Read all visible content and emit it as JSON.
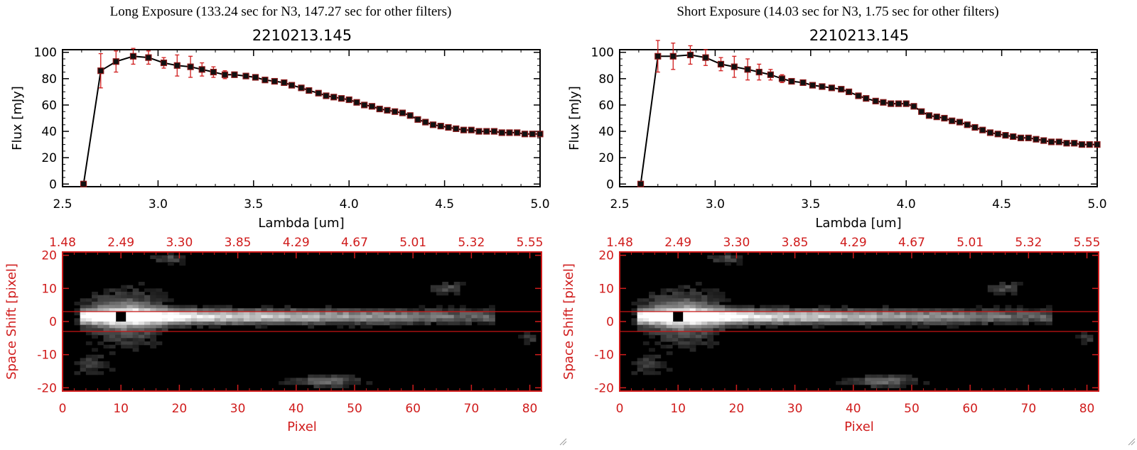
{
  "colors": {
    "background": "#ffffff",
    "axis": "#000000",
    "errorbar": "#d01c1c",
    "marker": "#111111",
    "marker_edge": "#8b1a1a",
    "image_axis": "#d01c1c",
    "aperture_line": "#c81414"
  },
  "chart_data": [
    {
      "type": "line",
      "panel": "long-exposure-spectrum",
      "heading": "Long Exposure (133.24 sec for N3, 147.27 sec for other filters)",
      "title": "2210213.145",
      "xlabel": "Lambda [um]",
      "ylabel": "Flux [mJy]",
      "xlim": [
        2.5,
        5.0
      ],
      "ylim": [
        -2,
        102
      ],
      "xticks": [
        2.5,
        3.0,
        3.5,
        4.0,
        4.5,
        5.0
      ],
      "xtick_labels": [
        "2.5",
        "3.0",
        "3.5",
        "4.0",
        "4.5",
        "5.0"
      ],
      "yticks": [
        0,
        20,
        40,
        60,
        80,
        100
      ],
      "ytick_labels": [
        "0",
        "20",
        "40",
        "60",
        "80",
        "100"
      ],
      "grid": false,
      "x": [
        2.61,
        2.7,
        2.78,
        2.87,
        2.95,
        3.03,
        3.1,
        3.17,
        3.23,
        3.29,
        3.35,
        3.4,
        3.46,
        3.51,
        3.56,
        3.61,
        3.66,
        3.7,
        3.75,
        3.79,
        3.84,
        3.88,
        3.92,
        3.96,
        4.0,
        4.04,
        4.08,
        4.12,
        4.16,
        4.2,
        4.24,
        4.28,
        4.32,
        4.36,
        4.4,
        4.44,
        4.48,
        4.52,
        4.56,
        4.6,
        4.64,
        4.68,
        4.72,
        4.76,
        4.8,
        4.84,
        4.88,
        4.92,
        4.96,
        5.0
      ],
      "y": [
        0,
        86,
        93,
        97,
        96,
        92,
        90,
        89,
        87,
        85,
        83,
        83,
        82,
        81,
        79,
        78,
        77,
        75,
        73,
        71,
        69,
        67,
        66,
        65,
        64,
        62,
        60,
        59,
        57,
        56,
        55,
        54,
        52,
        49,
        47,
        45,
        44,
        43,
        42,
        41,
        41,
        40,
        40,
        40,
        39,
        39,
        39,
        38,
        38,
        38
      ],
      "yerr": [
        0,
        13,
        8,
        6,
        5,
        4,
        8,
        8,
        5,
        4,
        3,
        2,
        2,
        2,
        2,
        1.5,
        1.5,
        1.5,
        1.5,
        1.5,
        1.5,
        1.5,
        1.5,
        1.5,
        1.5,
        1.5,
        1.5,
        1.5,
        1.5,
        1.5,
        1.5,
        1.5,
        1.5,
        1.5,
        1.5,
        1.5,
        1.5,
        1.5,
        1.5,
        1.5,
        1.5,
        1.5,
        1.5,
        1.5,
        1.5,
        1.5,
        1.5,
        1.5,
        1.5,
        1.5
      ]
    },
    {
      "type": "line",
      "panel": "short-exposure-spectrum",
      "heading": "Short Exposure (14.03 sec for N3, 1.75 sec for other filters)",
      "title": "2210213.145",
      "xlabel": "Lambda [um]",
      "ylabel": "Flux [mJy]",
      "xlim": [
        2.5,
        5.0
      ],
      "ylim": [
        -2,
        102
      ],
      "xticks": [
        2.5,
        3.0,
        3.5,
        4.0,
        4.5,
        5.0
      ],
      "xtick_labels": [
        "2.5",
        "3.0",
        "3.5",
        "4.0",
        "4.5",
        "5.0"
      ],
      "yticks": [
        0,
        20,
        40,
        60,
        80,
        100
      ],
      "ytick_labels": [
        "0",
        "20",
        "40",
        "60",
        "80",
        "100"
      ],
      "grid": false,
      "x": [
        2.61,
        2.7,
        2.78,
        2.87,
        2.95,
        3.03,
        3.1,
        3.17,
        3.23,
        3.29,
        3.35,
        3.4,
        3.46,
        3.51,
        3.56,
        3.61,
        3.66,
        3.7,
        3.75,
        3.79,
        3.84,
        3.88,
        3.92,
        3.96,
        4.0,
        4.04,
        4.08,
        4.12,
        4.16,
        4.2,
        4.24,
        4.28,
        4.32,
        4.36,
        4.4,
        4.44,
        4.48,
        4.52,
        4.56,
        4.6,
        4.64,
        4.68,
        4.72,
        4.76,
        4.8,
        4.84,
        4.88,
        4.92,
        4.96,
        5.0
      ],
      "y": [
        0,
        97,
        97,
        98,
        96,
        91,
        89,
        87,
        85,
        83,
        80,
        78,
        77,
        75,
        74,
        73,
        72,
        70,
        67,
        65,
        63,
        62,
        61,
        61,
        61,
        59,
        55,
        52,
        51,
        50,
        48,
        47,
        45,
        43,
        41,
        39,
        38,
        37,
        36,
        35,
        35,
        34,
        33,
        32,
        32,
        31,
        31,
        30,
        30,
        30
      ],
      "yerr": [
        0,
        12,
        10,
        7,
        6,
        5,
        8,
        8,
        6,
        4,
        3,
        2,
        2,
        1.5,
        1.5,
        1.5,
        1.5,
        1.5,
        1.5,
        1.5,
        1.5,
        1.5,
        1.5,
        1.5,
        1.5,
        1.5,
        1.5,
        1.5,
        1.5,
        1.5,
        1.5,
        1.5,
        1.5,
        1.5,
        1.5,
        1.5,
        1.5,
        1.5,
        1.5,
        1.5,
        1.5,
        1.5,
        1.5,
        1.5,
        1.5,
        1.5,
        1.5,
        1.5,
        1.5,
        1.5
      ]
    },
    {
      "type": "heatmap",
      "panel": "long-exposure-image",
      "xlabel": "Pixel",
      "ylabel": "Space Shift [pixel]",
      "xlim": [
        0,
        82
      ],
      "ylim": [
        -21,
        21
      ],
      "xticks": [
        0,
        10,
        20,
        30,
        40,
        50,
        60,
        70,
        80
      ],
      "xtick_labels": [
        "0",
        "10",
        "20",
        "30",
        "40",
        "50",
        "60",
        "70",
        "80"
      ],
      "yticks": [
        -20,
        -10,
        0,
        10,
        20
      ],
      "ytick_labels": [
        "-20",
        "-10",
        "0",
        "10",
        "20"
      ],
      "top_tick_labels": [
        "1.48",
        "2.49",
        "3.30",
        "3.85",
        "4.29",
        "4.67",
        "5.01",
        "5.32",
        "5.55"
      ],
      "colormap": "grayscale",
      "aperture_y": [
        -3,
        3
      ],
      "peak": [
        10,
        1.5
      ],
      "trace": {
        "x_start": 3,
        "x_end": 74,
        "center_y": 1.5,
        "halfwidth": 2.2
      },
      "blobs": [
        {
          "x": 11,
          "y": 1.5,
          "sx": 7,
          "sy": 8,
          "amp": 0.55
        },
        {
          "x": 18,
          "y": 19,
          "sx": 3,
          "sy": 1.5,
          "amp": 0.35
        },
        {
          "x": 45,
          "y": -18,
          "sx": 6,
          "sy": 1.8,
          "amp": 0.45
        },
        {
          "x": 66,
          "y": 10,
          "sx": 3,
          "sy": 1.8,
          "amp": 0.35
        },
        {
          "x": 5,
          "y": -13,
          "sx": 4,
          "sy": 3,
          "amp": 0.3
        },
        {
          "x": 80,
          "y": -5,
          "sx": 1.5,
          "sy": 1.5,
          "amp": 0.3
        }
      ]
    },
    {
      "type": "heatmap",
      "panel": "short-exposure-image",
      "xlabel": "Pixel",
      "ylabel": "Space Shift [pixel]",
      "xlim": [
        0,
        82
      ],
      "ylim": [
        -21,
        21
      ],
      "xticks": [
        0,
        10,
        20,
        30,
        40,
        50,
        60,
        70,
        80
      ],
      "xtick_labels": [
        "0",
        "10",
        "20",
        "30",
        "40",
        "50",
        "60",
        "70",
        "80"
      ],
      "yticks": [
        -20,
        -10,
        0,
        10,
        20
      ],
      "ytick_labels": [
        "-20",
        "-10",
        "0",
        "10",
        "20"
      ],
      "top_tick_labels": [
        "1.48",
        "2.49",
        "3.30",
        "3.85",
        "4.29",
        "4.67",
        "5.01",
        "5.32",
        "5.55"
      ],
      "colormap": "grayscale",
      "aperture_y": [
        -3,
        3
      ],
      "peak": [
        10,
        1.5
      ],
      "trace": {
        "x_start": 3,
        "x_end": 74,
        "center_y": 1.5,
        "halfwidth": 2.2
      },
      "blobs": [
        {
          "x": 11,
          "y": 1.5,
          "sx": 7,
          "sy": 8,
          "amp": 0.55
        },
        {
          "x": 18,
          "y": 19,
          "sx": 3,
          "sy": 1.5,
          "amp": 0.35
        },
        {
          "x": 45,
          "y": -18,
          "sx": 6,
          "sy": 1.8,
          "amp": 0.45
        },
        {
          "x": 66,
          "y": 10,
          "sx": 3,
          "sy": 1.8,
          "amp": 0.35
        },
        {
          "x": 5,
          "y": -13,
          "sx": 4,
          "sy": 3,
          "amp": 0.3
        },
        {
          "x": 80,
          "y": -5,
          "sx": 1.5,
          "sy": 1.5,
          "amp": 0.3
        }
      ]
    }
  ]
}
